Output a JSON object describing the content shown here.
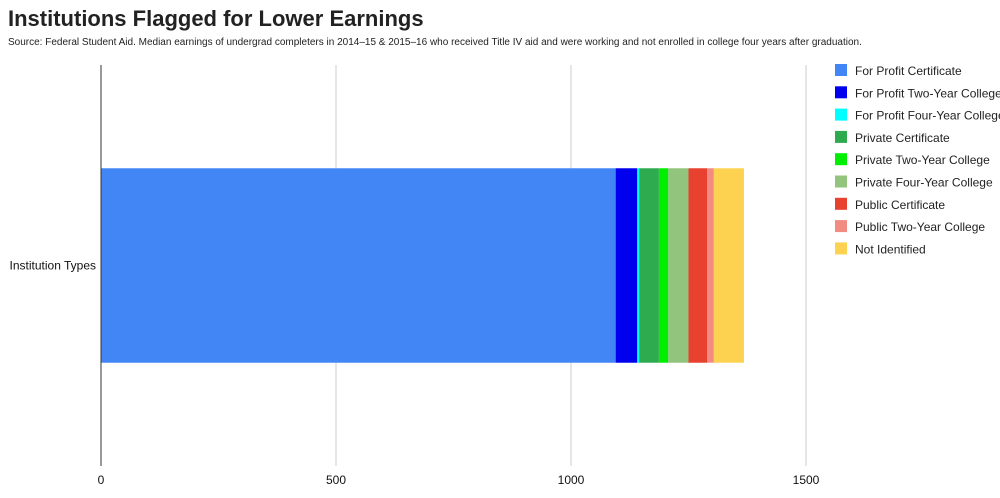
{
  "chart_data": {
    "type": "bar",
    "orientation": "horizontal",
    "stacked": true,
    "title": "Institutions Flagged for Lower Earnings",
    "subtitle": "Source: Federal Student Aid. Median earnings of undergrad completers in 2014–15 & 2015–16 who received Title IV aid and were working and not enrolled in college four years after graduation.",
    "categories": [
      "Institution Types"
    ],
    "series": [
      {
        "name": "For Profit Certificate",
        "color": "#4285f4",
        "values": [
          1095
        ]
      },
      {
        "name": "For Profit Two-Year College",
        "color": "#0000ee",
        "values": [
          46
        ]
      },
      {
        "name": "For Profit Four-Year College",
        "color": "#00ffff",
        "values": [
          4
        ]
      },
      {
        "name": "Private Certificate",
        "color": "#2eaa4f",
        "values": [
          42
        ]
      },
      {
        "name": "Private Two-Year College",
        "color": "#00ee00",
        "values": [
          20
        ]
      },
      {
        "name": "Private Four-Year College",
        "color": "#93c47d",
        "values": [
          43
        ]
      },
      {
        "name": "Public Certificate",
        "color": "#e8412f",
        "values": [
          40
        ]
      },
      {
        "name": "Public Two-Year College",
        "color": "#f28b82",
        "values": [
          14
        ]
      },
      {
        "name": "Not Identified",
        "color": "#fdd250",
        "values": [
          64
        ]
      }
    ],
    "xlim": [
      0,
      2000
    ],
    "xticks": [
      0,
      500,
      1000,
      1500
    ],
    "xlabel": "",
    "ylabel": "",
    "grid": true,
    "legend": "right"
  }
}
